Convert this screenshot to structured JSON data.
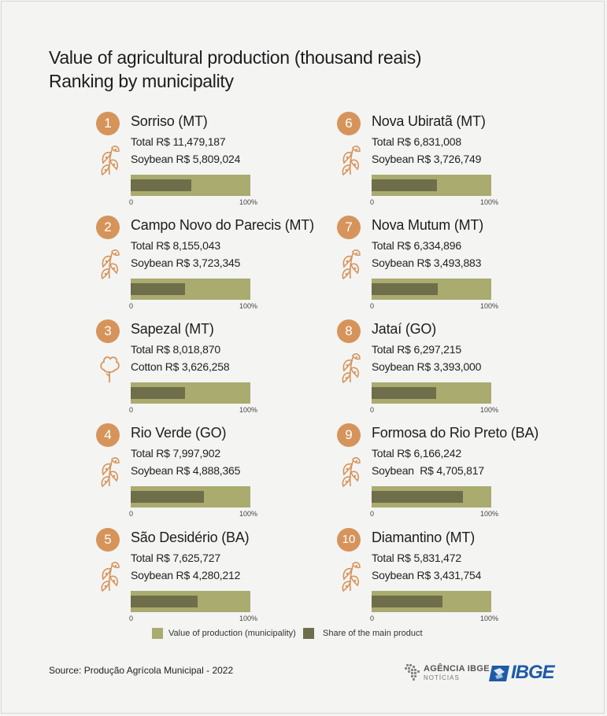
{
  "title_line1": "Value of agricultural production (thousand reais)",
  "title_line2": "Ranking by municipality",
  "colors": {
    "rank": "#d6945b",
    "bar": "#a9ab6f",
    "share": "#6e6e4a",
    "icon": "#d6945b"
  },
  "axis": {
    "min_label": "0",
    "max_label": "100%"
  },
  "chart_data": {
    "type": "bar",
    "title": "Value of agricultural production (thousand reais)",
    "subtitle": "Ranking by municipality",
    "unit": "thousand reais",
    "categories": [
      "Sorriso (MT)",
      "Campo Novo do Parecis (MT)",
      "Sapezal (MT)",
      "Rio Verde (GO)",
      "São Desidério (BA)",
      "Nova Ubiratã (MT)",
      "Nova Mutum (MT)",
      "Jataí (GO)",
      "Formosa do Rio Preto (BA)",
      "Diamantino (MT)"
    ],
    "series": [
      {
        "name": "Value of production (municipality)",
        "values": [
          11479187,
          8155043,
          8018870,
          7997902,
          7625727,
          6831008,
          6334896,
          6297215,
          6166242,
          5831472
        ]
      },
      {
        "name": "Share of the main product",
        "values": [
          5809024,
          3723345,
          3626258,
          4888365,
          4280212,
          3726749,
          3493883,
          3393000,
          4705817,
          3431754
        ]
      }
    ],
    "items": [
      {
        "rank": "1",
        "name": "Sorriso (MT)",
        "total_text": "Total R$ 11,479,187",
        "product_text": "Soybean R$ 5,809,024",
        "product": "soybean",
        "total": 11479187,
        "product_value": 5809024
      },
      {
        "rank": "2",
        "name": "Campo Novo do Parecis (MT)",
        "total_text": "Total R$ 8,155,043",
        "product_text": "Soybean R$ 3,723,345",
        "product": "soybean",
        "total": 8155043,
        "product_value": 3723345
      },
      {
        "rank": "3",
        "name": "Sapezal (MT)",
        "total_text": "Total R$ 8,018,870",
        "product_text": "Cotton R$ 3,626,258",
        "product": "cotton",
        "total": 8018870,
        "product_value": 3626258
      },
      {
        "rank": "4",
        "name": "Rio Verde (GO)",
        "total_text": "Total R$ 7,997,902",
        "product_text": "Soybean R$ 4,888,365",
        "product": "soybean",
        "total": 7997902,
        "product_value": 4888365
      },
      {
        "rank": "5",
        "name": "São Desidério (BA)",
        "total_text": "Total R$ 7,625,727",
        "product_text": "Soybean R$ 4,280,212",
        "product": "soybean",
        "total": 7625727,
        "product_value": 4280212
      },
      {
        "rank": "6",
        "name": "Nova Ubiratã (MT)",
        "total_text": "Total R$ 6,831,008",
        "product_text": "Soybean R$ 3,726,749",
        "product": "soybean",
        "total": 6831008,
        "product_value": 3726749
      },
      {
        "rank": "7",
        "name": "Nova Mutum (MT)",
        "total_text": "Total R$ 6,334,896",
        "product_text": "Soybean R$ 3,493,883",
        "product": "soybean",
        "total": 6334896,
        "product_value": 3493883
      },
      {
        "rank": "8",
        "name": "Jataí (GO)",
        "total_text": "Total R$ 6,297,215",
        "product_text": "Soybean R$ 3,393,000",
        "product": "soybean",
        "total": 6297215,
        "product_value": 3393000
      },
      {
        "rank": "9",
        "name": "Formosa do Rio Preto (BA)",
        "total_text": "Total R$ 6,166,242",
        "product_text": "Soybean  R$ 4,705,817",
        "product": "soybean",
        "total": 6166242,
        "product_value": 4705817
      },
      {
        "rank": "10",
        "name": "Diamantino (MT)",
        "total_text": "Total R$ 5,831,472",
        "product_text": "Soybean R$ 3,431,754",
        "product": "soybean",
        "total": 5831472,
        "product_value": 3431754
      }
    ],
    "xlim": [
      0,
      100
    ]
  },
  "legend": {
    "value_label": "Value of production (municipality)",
    "share_label": "Share of the main product"
  },
  "source": "Source: Produção Agrícola Municipal - 2022",
  "logos": {
    "agencia_line1": "AGÊNCIA IBGE",
    "agencia_line2": "NOTÍCIAS",
    "ibge": "IBGE"
  }
}
